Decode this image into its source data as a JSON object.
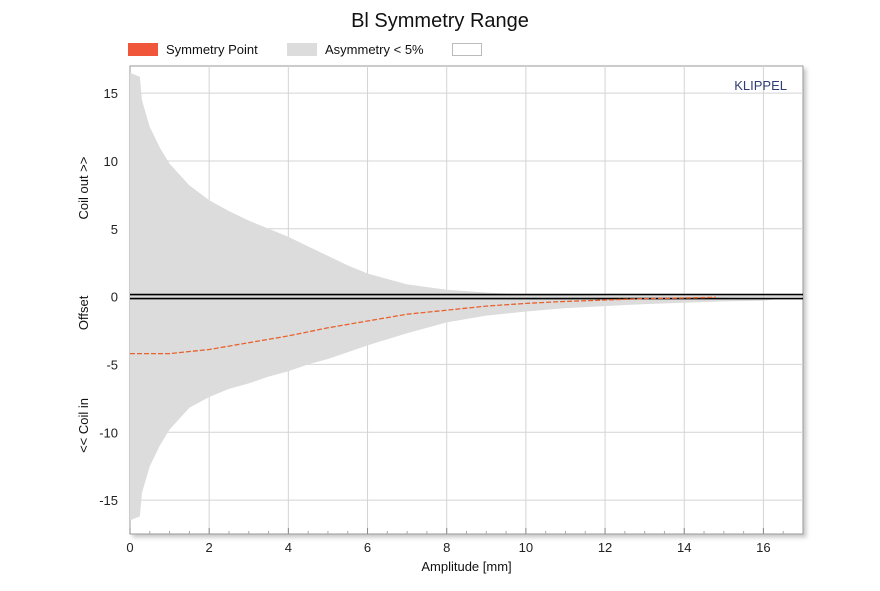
{
  "chart_data": {
    "type": "area",
    "title": "Bl Symmetry Range",
    "xlabel": "Amplitude [mm]",
    "ylabel_parts": [
      "<< Coil in",
      "Offset",
      "Coil out >>"
    ],
    "watermark": "KLIPPEL",
    "xlim": [
      0,
      17
    ],
    "ylim": [
      -17.5,
      17
    ],
    "xticks": [
      0,
      2,
      4,
      6,
      8,
      10,
      12,
      14,
      16
    ],
    "yticks": [
      15,
      10,
      5,
      0,
      -5,
      -10,
      -15
    ],
    "legend": {
      "placement": "top",
      "items": [
        {
          "label": "Symmetry Point",
          "color": "#f0573a"
        },
        {
          "label": "Asymmetry < 5%",
          "color": "#dcdcdc"
        },
        {
          "label": "",
          "color": "#ffffff"
        }
      ]
    },
    "series": [
      {
        "name": "Symmetry Point",
        "color": "#e8622e",
        "x": [
          0,
          1,
          2,
          3,
          4,
          5,
          6,
          7,
          8,
          9,
          10,
          11,
          12,
          13,
          14,
          14.8
        ],
        "y": [
          -4.2,
          -4.2,
          -3.9,
          -3.4,
          -2.9,
          -2.3,
          -1.8,
          -1.3,
          -1.0,
          -0.7,
          -0.5,
          -0.35,
          -0.25,
          -0.15,
          -0.1,
          -0.05
        ]
      },
      {
        "name": "Asymmetry < 5%",
        "color": "#dcdcdc",
        "x": [
          0,
          0.25,
          0.3,
          0.4,
          0.5,
          0.75,
          1,
          1.5,
          2,
          2.5,
          3,
          3.5,
          4,
          4.5,
          5,
          5.5,
          6,
          7,
          8,
          9,
          10,
          11,
          12,
          13,
          14,
          15,
          16,
          16.3
        ],
        "upper": [
          16.5,
          16.2,
          14.5,
          13.5,
          12.5,
          11,
          9.8,
          8.2,
          7.1,
          6.3,
          5.6,
          5.0,
          4.4,
          3.7,
          3.0,
          2.3,
          1.7,
          0.9,
          0.5,
          0.3,
          0.15,
          0.1,
          0.05,
          0.0,
          0.0,
          -0.05,
          -0.1,
          -0.2
        ],
        "lower": [
          -16.5,
          -16.2,
          -14.5,
          -13.5,
          -12.5,
          -11,
          -9.8,
          -8.2,
          -7.4,
          -6.8,
          -6.4,
          -5.9,
          -5.5,
          -5.0,
          -4.6,
          -4.1,
          -3.6,
          -2.7,
          -1.9,
          -1.4,
          -1.1,
          -0.85,
          -0.7,
          -0.55,
          -0.45,
          -0.35,
          -0.3,
          -0.2
        ]
      }
    ],
    "reference_line_y": 0
  }
}
